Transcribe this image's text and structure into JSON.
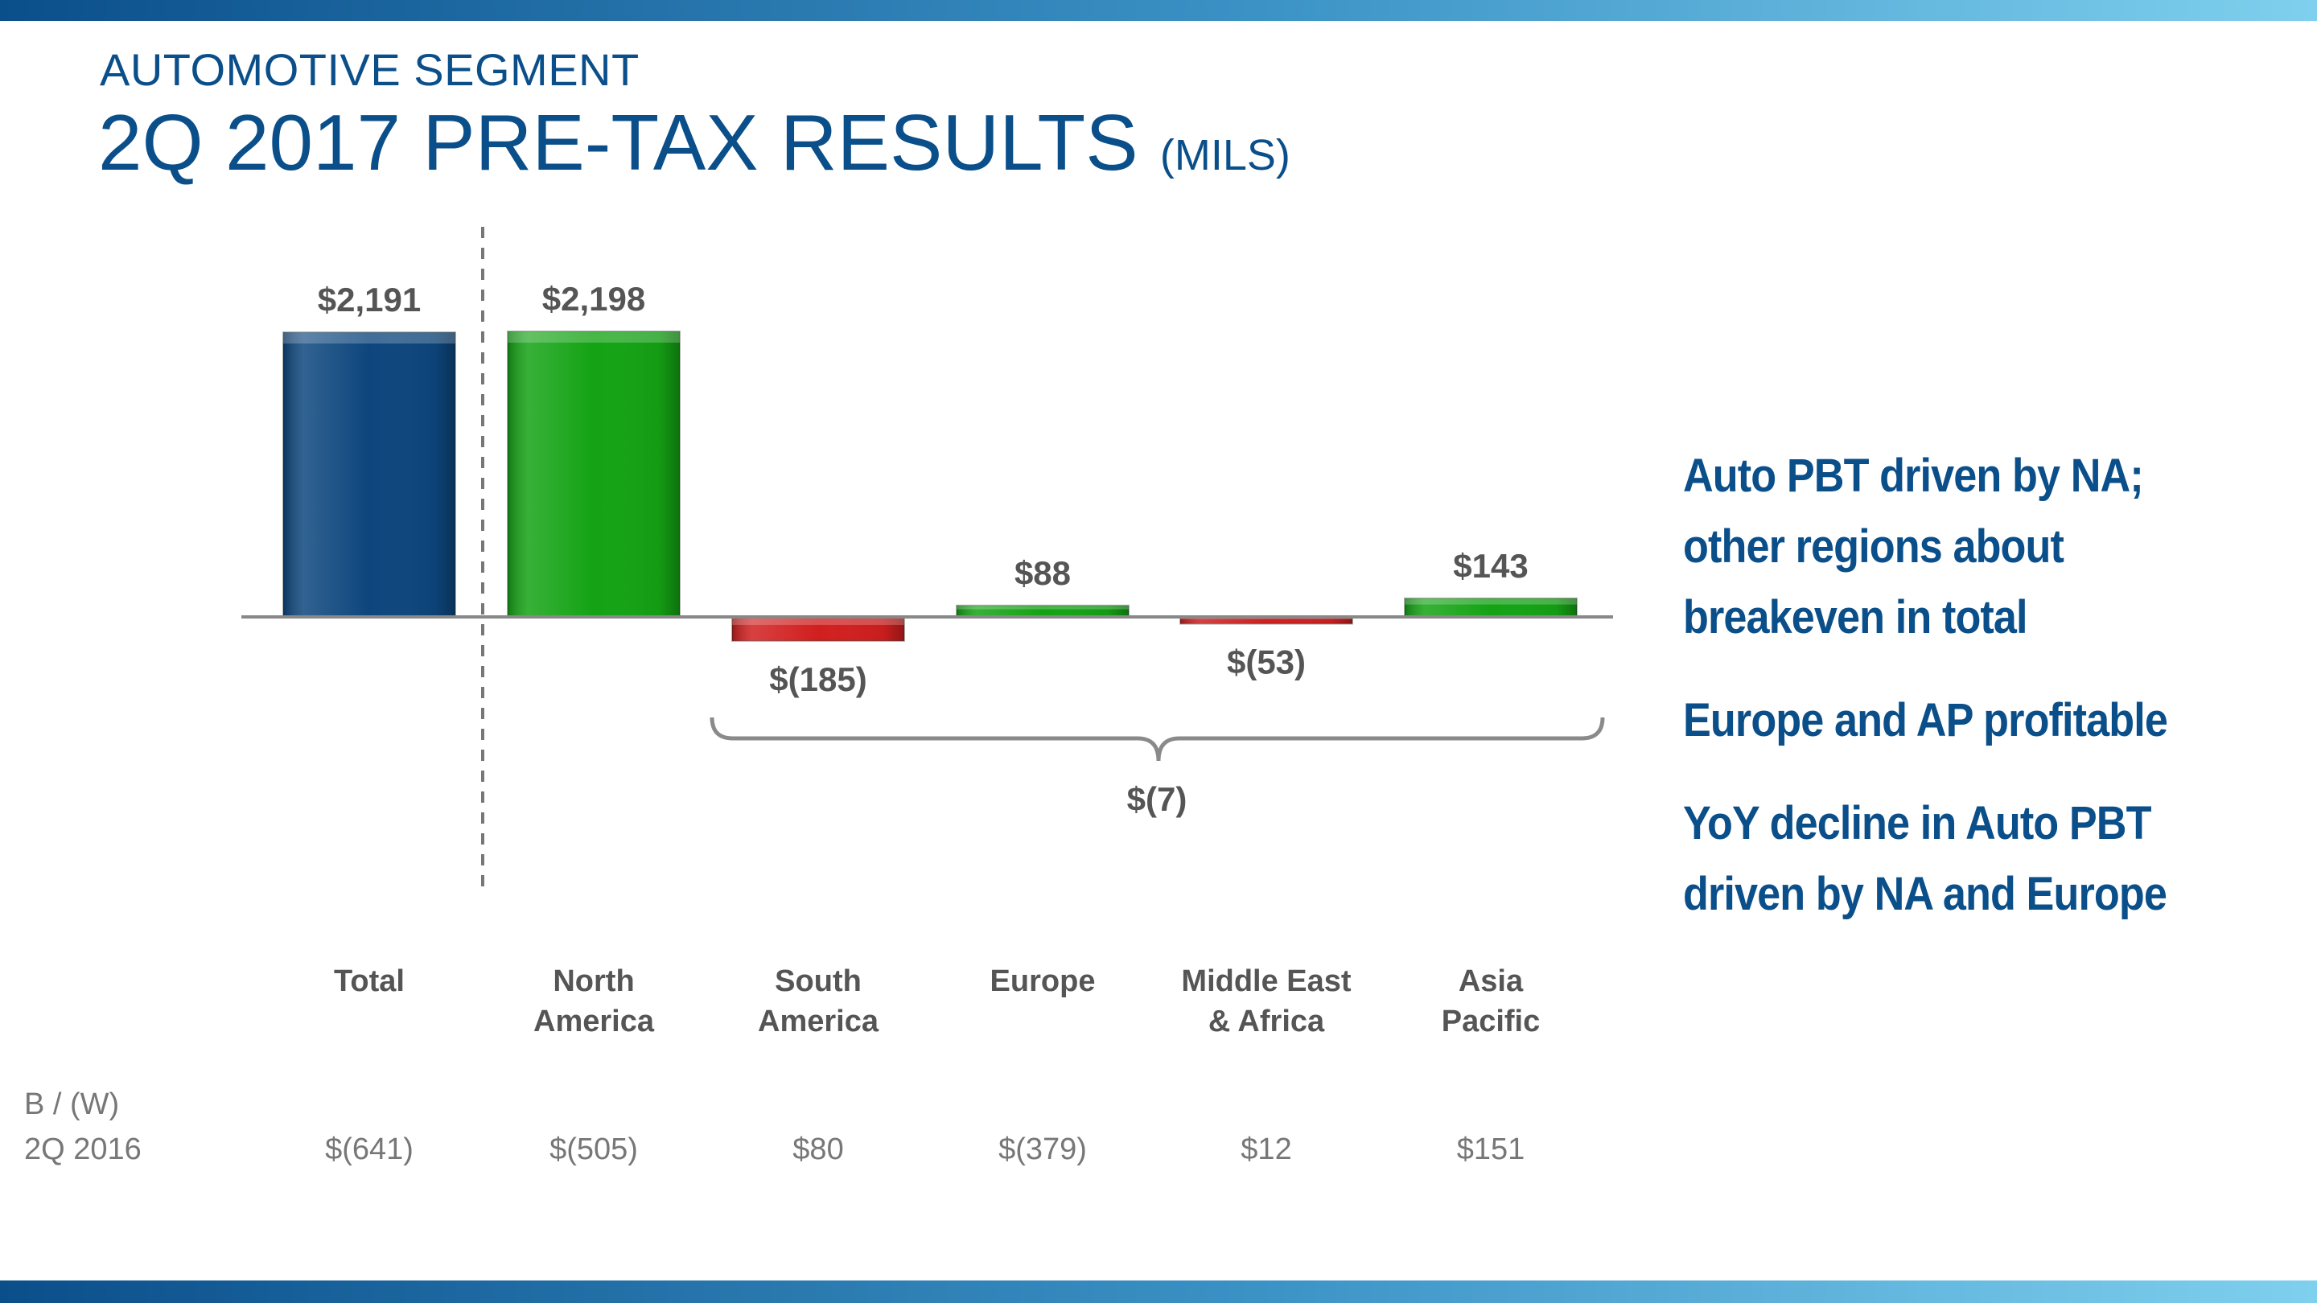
{
  "header": {
    "kicker": "AUTOMOTIVE SEGMENT",
    "title": "2Q 2017 PRE-TAX RESULTS",
    "unit": "(MILS)"
  },
  "chart_data": {
    "type": "bar",
    "categories": [
      "Total",
      "North America",
      "South America",
      "Europe",
      "Middle East & Africa",
      "Asia Pacific"
    ],
    "category_lines": [
      [
        "Total"
      ],
      [
        "North",
        "America"
      ],
      [
        "South",
        "America"
      ],
      [
        "Europe"
      ],
      [
        "Middle East",
        "& Africa"
      ],
      [
        "Asia",
        "Pacific"
      ]
    ],
    "values": [
      2191,
      2198,
      -185,
      88,
      -53,
      143
    ],
    "data_labels": [
      "$2,191",
      "$2,198",
      "$(185)",
      "$88",
      "$(53)",
      "$143"
    ],
    "bar_colors": [
      "#0d467d",
      "#14a314",
      "#d11f1f",
      "#14a314",
      "#d11f1f",
      "#14a314"
    ],
    "bracket": {
      "from_category": "South America",
      "to_category": "Asia Pacific",
      "label": "$(7)"
    },
    "ylim": [
      -2200,
      2198
    ],
    "grid": false,
    "legend": "none"
  },
  "comparison": {
    "label_line1": "B / (W)",
    "label_line2": "2Q 2016",
    "values": [
      "$(641)",
      "$(505)",
      "$80",
      "$(379)",
      "$12",
      "$151"
    ]
  },
  "bullets": [
    "Auto PBT driven by NA; other regions about breakeven in total",
    "Europe and AP profitable",
    "YoY decline in Auto PBT driven by NA and Europe"
  ],
  "colors": {
    "brand_blue": "#0b4f8a",
    "green": "#14a314",
    "red": "#d11f1f",
    "label_gray": "#555555"
  }
}
